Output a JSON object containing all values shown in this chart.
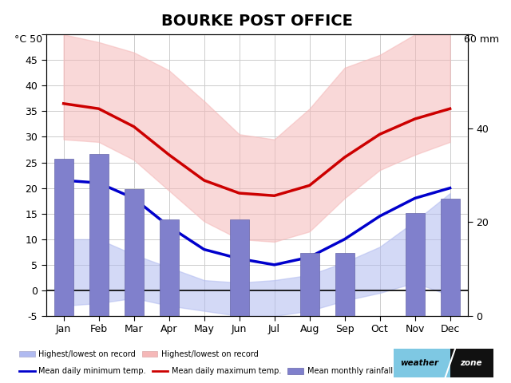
{
  "title": "BOURKE POST OFFICE",
  "months": [
    "Jan",
    "Feb",
    "Mar",
    "Apr",
    "May",
    "Jun",
    "Jul",
    "Aug",
    "Sep",
    "Oct",
    "Nov",
    "Dec"
  ],
  "mean_min_temp": [
    21.5,
    21.0,
    18.0,
    12.5,
    8.0,
    6.2,
    5.0,
    6.5,
    10.0,
    14.5,
    18.0,
    20.0
  ],
  "mean_max_temp": [
    36.5,
    35.5,
    32.0,
    26.5,
    21.5,
    19.0,
    18.5,
    20.5,
    26.0,
    30.5,
    33.5,
    35.5
  ],
  "record_min_low": [
    -3.0,
    -2.5,
    -1.5,
    -3.0,
    -4.0,
    -5.0,
    -5.0,
    -4.0,
    -2.0,
    -0.5,
    1.5,
    -1.0
  ],
  "record_min_high": [
    10.0,
    10.0,
    7.0,
    4.5,
    2.0,
    1.5,
    2.0,
    3.0,
    5.5,
    8.5,
    13.5,
    19.0
  ],
  "record_max_low": [
    29.5,
    29.0,
    25.5,
    19.5,
    13.5,
    10.0,
    9.5,
    11.5,
    18.0,
    23.5,
    26.5,
    29.0
  ],
  "record_max_high": [
    50.0,
    48.5,
    46.5,
    43.0,
    37.0,
    30.5,
    29.5,
    35.5,
    43.5,
    46.0,
    50.0,
    50.0
  ],
  "mean_rainfall": [
    33.5,
    34.5,
    27.0,
    20.5,
    0.0,
    20.5,
    0.0,
    13.5,
    13.5,
    0.0,
    22.0,
    25.0
  ],
  "left_ylim": [
    -5,
    50
  ],
  "right_ylim": [
    0,
    60
  ],
  "left_yticks": [
    -5,
    0,
    5,
    10,
    15,
    20,
    25,
    30,
    35,
    40,
    45,
    50
  ],
  "right_yticks": [
    0,
    20,
    40,
    60
  ],
  "temp_color_min": "#0000cc",
  "temp_color_max": "#cc0000",
  "fill_min_color": "#b0baf0",
  "fill_max_color": "#f5b8b8",
  "bar_color": "#8080cc",
  "bar_edge_color": "#6666aa",
  "background_color": "#ffffff",
  "grid_color": "#cccccc",
  "title_fontsize": 14
}
